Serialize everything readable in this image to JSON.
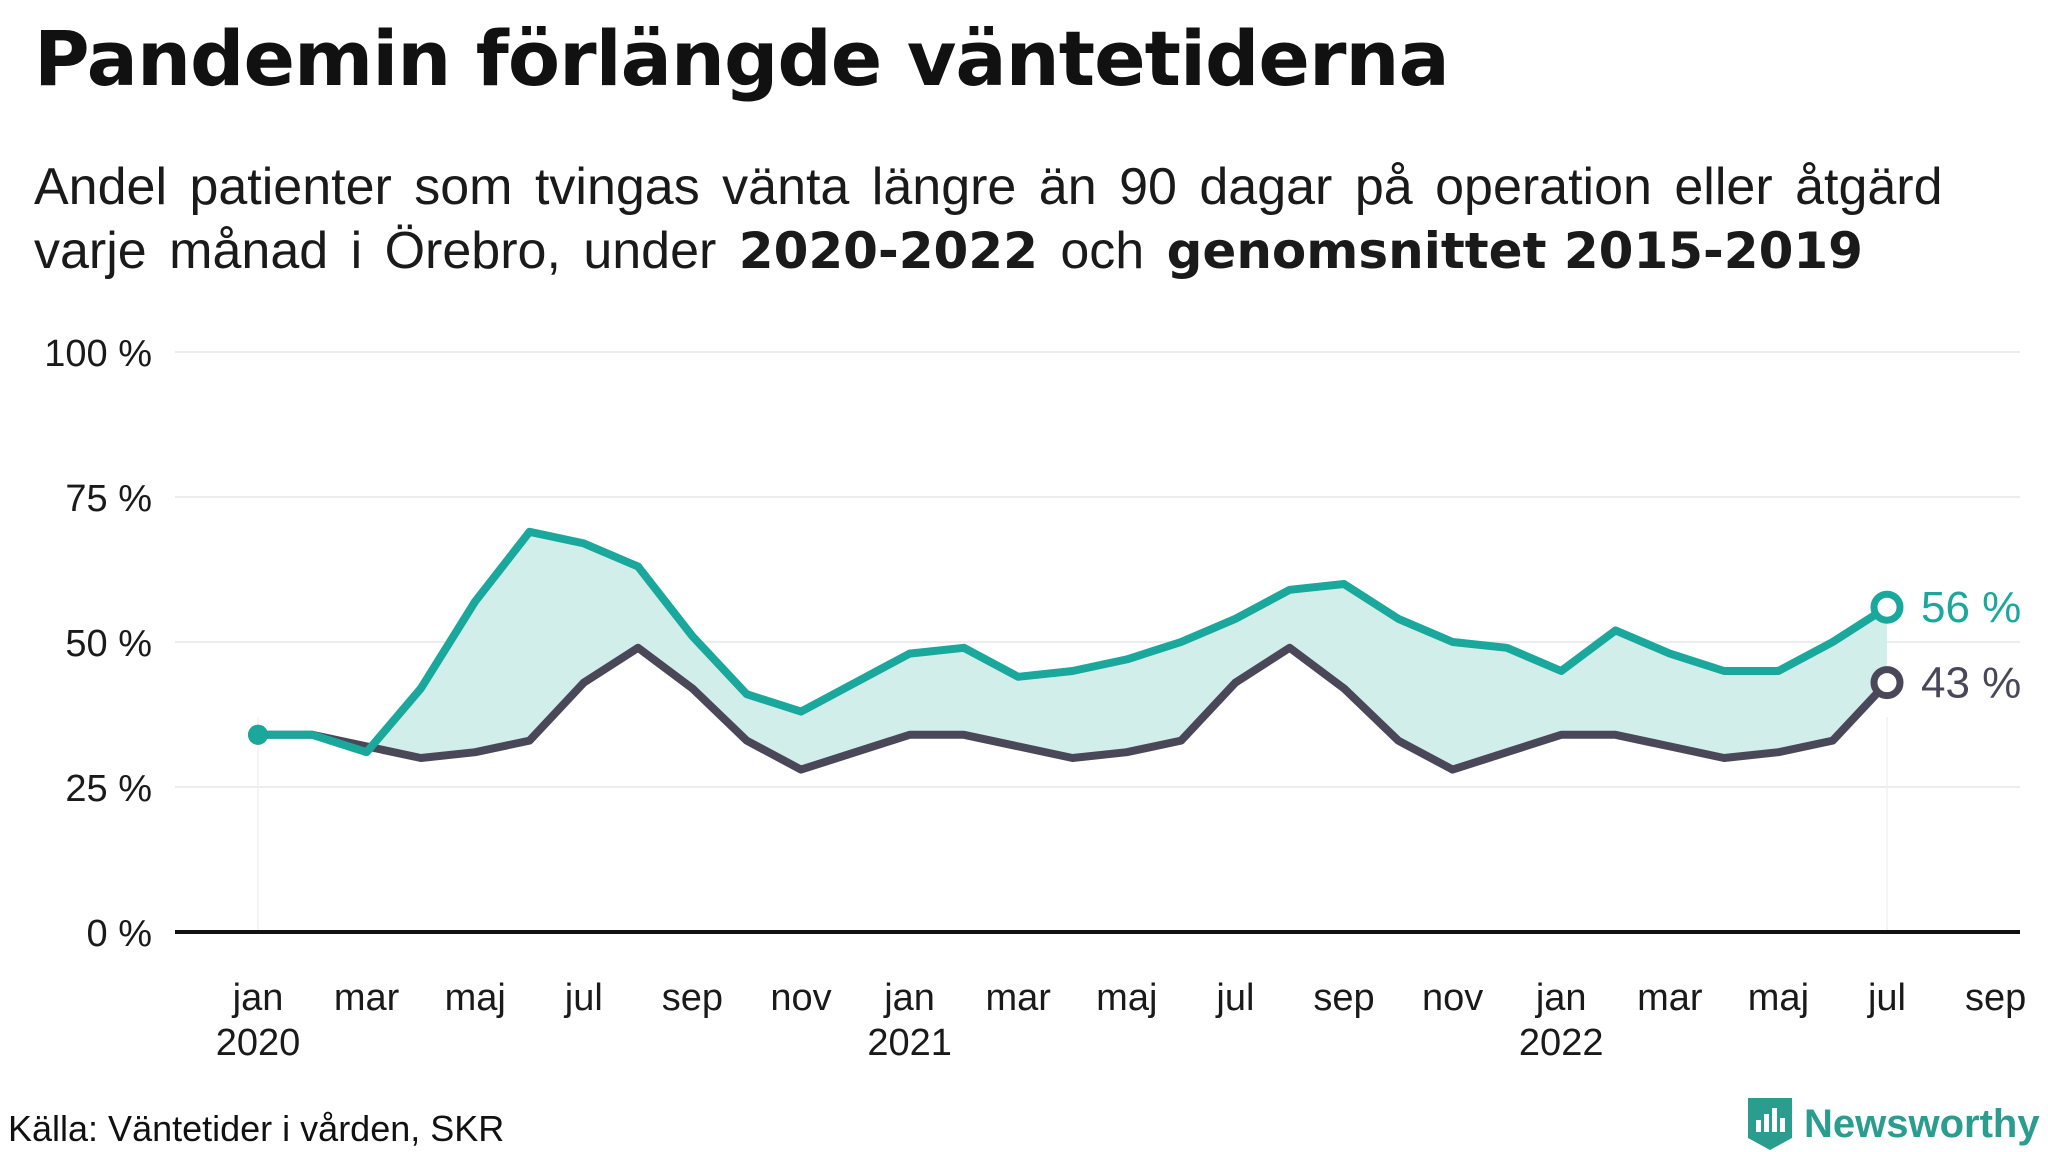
{
  "chart_data": {
    "type": "area",
    "title": "Pandemin förlängde väntetiderna",
    "subtitle_parts": [
      "Andel patienter som tvingas vänta längre än 90 dagar på operation eller åtgärd varje månad i Örebro, under",
      "2020-2022",
      "och",
      "genomsnittet 2015-2019"
    ],
    "xlabel": "",
    "ylabel": "",
    "ylim": [
      0,
      100
    ],
    "y_ticks": [
      0,
      25,
      50,
      75,
      100
    ],
    "y_tick_labels": [
      "0 %",
      "25 %",
      "50 %",
      "75 %",
      "100 %"
    ],
    "x_ticks": [
      {
        "month": "jan",
        "year": "2020"
      },
      {
        "month": "mar",
        "year": ""
      },
      {
        "month": "maj",
        "year": ""
      },
      {
        "month": "jul",
        "year": ""
      },
      {
        "month": "sep",
        "year": ""
      },
      {
        "month": "nov",
        "year": ""
      },
      {
        "month": "jan",
        "year": "2021"
      },
      {
        "month": "mar",
        "year": ""
      },
      {
        "month": "maj",
        "year": ""
      },
      {
        "month": "jul",
        "year": ""
      },
      {
        "month": "sep",
        "year": ""
      },
      {
        "month": "nov",
        "year": ""
      },
      {
        "month": "jan",
        "year": "2022"
      },
      {
        "month": "mar",
        "year": ""
      },
      {
        "month": "maj",
        "year": ""
      },
      {
        "month": "jul",
        "year": ""
      },
      {
        "month": "sep",
        "year": ""
      }
    ],
    "x": [
      "2020-01",
      "2020-02",
      "2020-03",
      "2020-04",
      "2020-05",
      "2020-06",
      "2020-07",
      "2020-08",
      "2020-09",
      "2020-10",
      "2020-11",
      "2020-12",
      "2021-01",
      "2021-02",
      "2021-03",
      "2021-04",
      "2021-05",
      "2021-06",
      "2021-07",
      "2021-08",
      "2021-09",
      "2021-10",
      "2021-11",
      "2021-12",
      "2022-01",
      "2022-02",
      "2022-03",
      "2022-04",
      "2022-05",
      "2022-06",
      "2022-07"
    ],
    "series": [
      {
        "name": "2020-2022",
        "color": "#1aa89c",
        "values": [
          34,
          34,
          31,
          42,
          57,
          69,
          67,
          63,
          51,
          41,
          38,
          43,
          48,
          49,
          44,
          45,
          47,
          50,
          54,
          59,
          60,
          54,
          50,
          49,
          45,
          52,
          48,
          45,
          45,
          50,
          56
        ]
      },
      {
        "name": "genomsnittet 2015-2019",
        "color": "#4a4858",
        "values": [
          34,
          34,
          32,
          30,
          31,
          33,
          43,
          49,
          42,
          33,
          28,
          31,
          34,
          34,
          32,
          30,
          31,
          33,
          43,
          49,
          42,
          33,
          28,
          31,
          34,
          34,
          32,
          30,
          31,
          33,
          43
        ]
      }
    ],
    "end_labels": [
      "56 %",
      "43 %"
    ],
    "fill_color": "#d2eeeb",
    "grid": true
  },
  "source": "Källa: Väntetider i vården, SKR",
  "logo": {
    "text": "Newsworthy",
    "color": "#2a9d8f",
    "icon": "newsworthy-bar-chart-icon"
  }
}
